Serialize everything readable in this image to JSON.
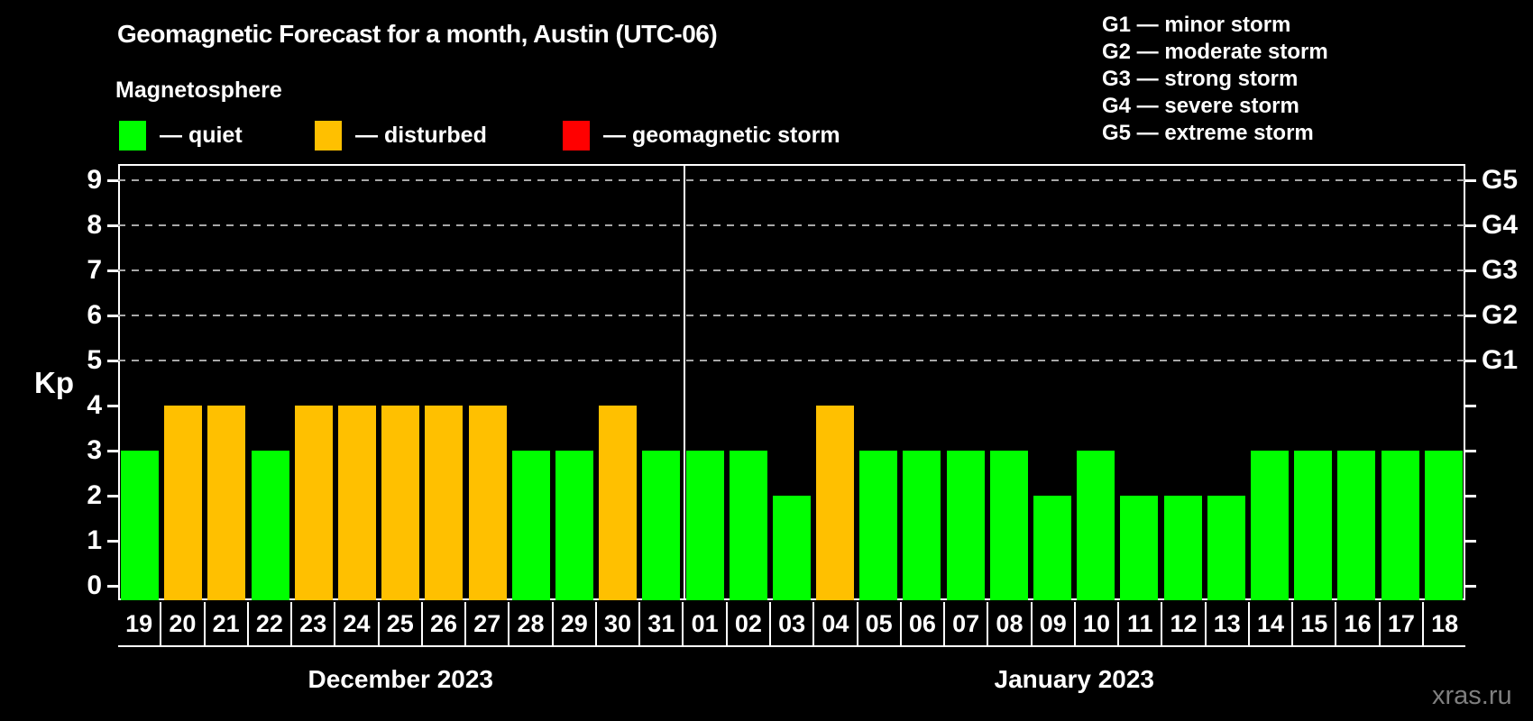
{
  "title": "Geomagnetic Forecast for a month, Austin (UTC-06)",
  "subtitle": "Magnetosphere",
  "watermark": "xras.ru",
  "colors": {
    "quiet": "#00ff00",
    "disturbed": "#ffc000",
    "storm": "#ff0000",
    "background": "#000000",
    "grid": "#a8a8a8",
    "text": "#ffffff",
    "watermark": "#7f7f7f"
  },
  "legend": [
    {
      "state": "quiet",
      "label": "— quiet"
    },
    {
      "state": "disturbed",
      "label": "— disturbed"
    },
    {
      "state": "storm",
      "label": "— geomagnetic storm"
    }
  ],
  "storm_scale": [
    "G1 — minor storm",
    "G2 — moderate storm",
    "G3 — strong storm",
    "G4 — severe storm",
    "G5 — extreme storm"
  ],
  "chart_data": {
    "type": "bar",
    "ylabel": "Kp",
    "ylim": [
      0,
      9
    ],
    "yticks": [
      0,
      1,
      2,
      3,
      4,
      5,
      6,
      7,
      8,
      9
    ],
    "gridlines_at": [
      5,
      6,
      7,
      8,
      9
    ],
    "grid": "dashed",
    "right_axis": [
      {
        "kp": 5,
        "label": "G1"
      },
      {
        "kp": 6,
        "label": "G2"
      },
      {
        "kp": 7,
        "label": "G3"
      },
      {
        "kp": 8,
        "label": "G4"
      },
      {
        "kp": 9,
        "label": "G5"
      }
    ],
    "months": [
      {
        "label": "December 2023",
        "start_index": 0,
        "count": 13
      },
      {
        "label": "January 2023",
        "start_index": 13,
        "count": 18
      }
    ],
    "bars": [
      {
        "day": "19",
        "kp": 3,
        "state": "quiet"
      },
      {
        "day": "20",
        "kp": 4,
        "state": "disturbed"
      },
      {
        "day": "21",
        "kp": 4,
        "state": "disturbed"
      },
      {
        "day": "22",
        "kp": 3,
        "state": "quiet"
      },
      {
        "day": "23",
        "kp": 4,
        "state": "disturbed"
      },
      {
        "day": "24",
        "kp": 4,
        "state": "disturbed"
      },
      {
        "day": "25",
        "kp": 4,
        "state": "disturbed"
      },
      {
        "day": "26",
        "kp": 4,
        "state": "disturbed"
      },
      {
        "day": "27",
        "kp": 4,
        "state": "disturbed"
      },
      {
        "day": "28",
        "kp": 3,
        "state": "quiet"
      },
      {
        "day": "29",
        "kp": 3,
        "state": "quiet"
      },
      {
        "day": "30",
        "kp": 4,
        "state": "disturbed"
      },
      {
        "day": "31",
        "kp": 3,
        "state": "quiet"
      },
      {
        "day": "01",
        "kp": 3,
        "state": "quiet"
      },
      {
        "day": "02",
        "kp": 3,
        "state": "quiet"
      },
      {
        "day": "03",
        "kp": 2,
        "state": "quiet"
      },
      {
        "day": "04",
        "kp": 4,
        "state": "disturbed"
      },
      {
        "day": "05",
        "kp": 3,
        "state": "quiet"
      },
      {
        "day": "06",
        "kp": 3,
        "state": "quiet"
      },
      {
        "day": "07",
        "kp": 3,
        "state": "quiet"
      },
      {
        "day": "08",
        "kp": 3,
        "state": "quiet"
      },
      {
        "day": "09",
        "kp": 2,
        "state": "quiet"
      },
      {
        "day": "10",
        "kp": 3,
        "state": "quiet"
      },
      {
        "day": "11",
        "kp": 2,
        "state": "quiet"
      },
      {
        "day": "12",
        "kp": 2,
        "state": "quiet"
      },
      {
        "day": "13",
        "kp": 2,
        "state": "quiet"
      },
      {
        "day": "14",
        "kp": 3,
        "state": "quiet"
      },
      {
        "day": "15",
        "kp": 3,
        "state": "quiet"
      },
      {
        "day": "16",
        "kp": 3,
        "state": "quiet"
      },
      {
        "day": "17",
        "kp": 3,
        "state": "quiet"
      },
      {
        "day": "18",
        "kp": 3,
        "state": "quiet"
      }
    ]
  }
}
